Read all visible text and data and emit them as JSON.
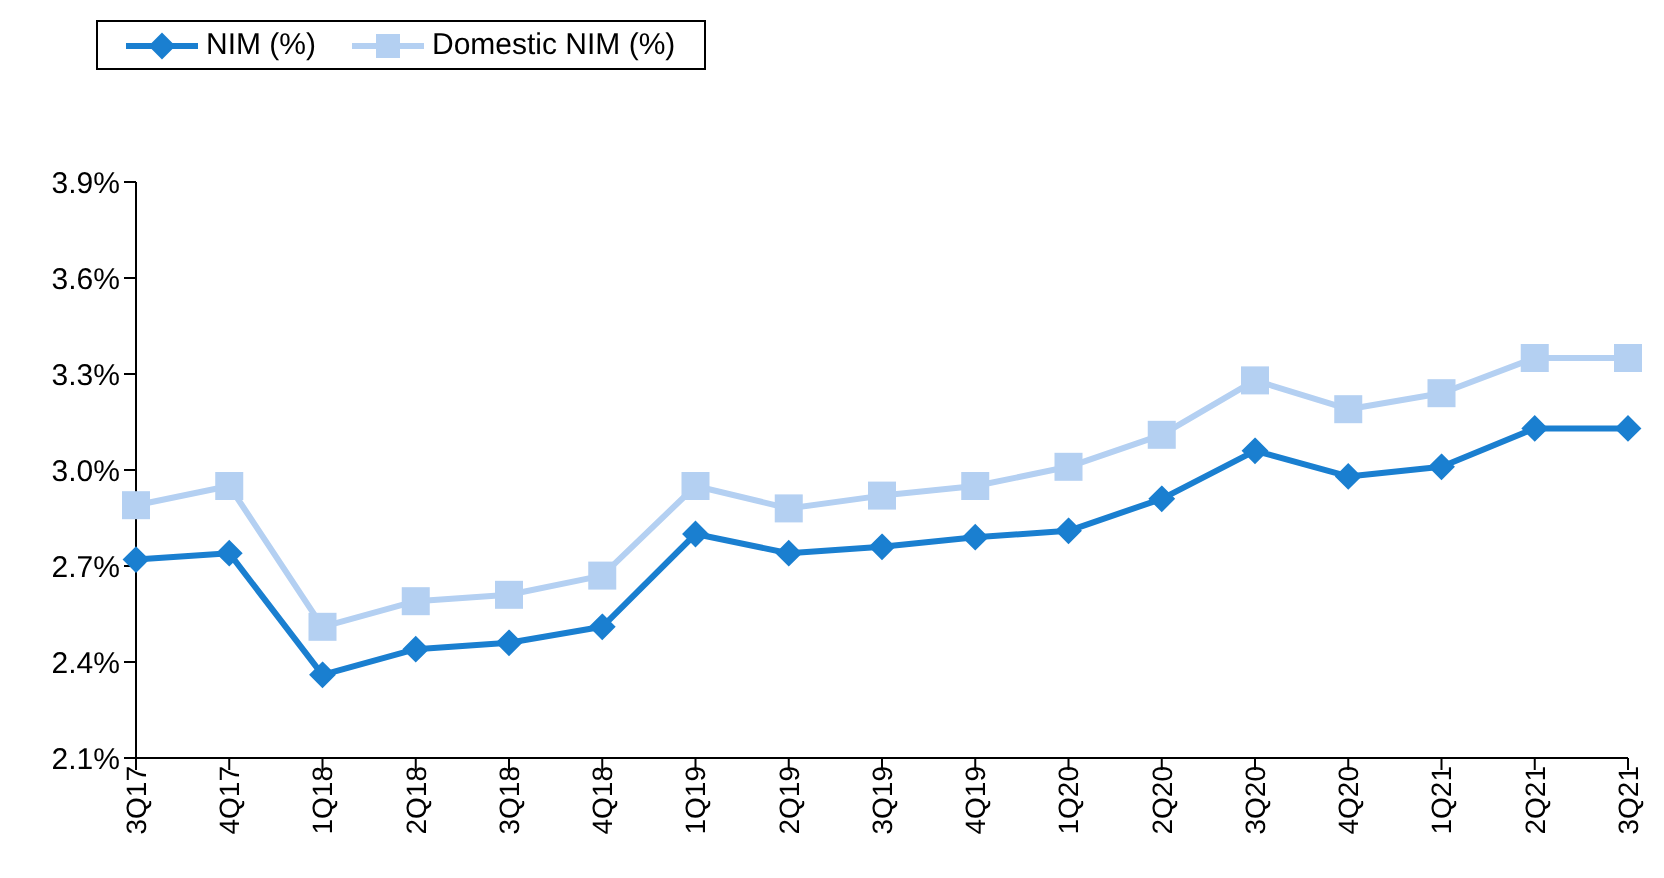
{
  "chart_data": {
    "type": "line",
    "categories": [
      "3Q17",
      "4Q17",
      "1Q18",
      "2Q18",
      "3Q18",
      "4Q18",
      "1Q19",
      "2Q19",
      "3Q19",
      "4Q19",
      "1Q20",
      "2Q20",
      "3Q20",
      "4Q20",
      "1Q21",
      "2Q21",
      "3Q21"
    ],
    "series": [
      {
        "name": "NIM (%)",
        "color": "#1a7fd0",
        "marker": "diamond",
        "values": [
          2.72,
          2.74,
          2.36,
          2.44,
          2.46,
          2.51,
          2.8,
          2.74,
          2.76,
          2.79,
          2.81,
          2.91,
          3.06,
          2.98,
          3.01,
          3.13,
          3.13
        ]
      },
      {
        "name": "Domestic NIM (%)",
        "color": "#b4d0f2",
        "marker": "square",
        "values": [
          2.89,
          2.95,
          2.51,
          2.59,
          2.61,
          2.67,
          2.95,
          2.88,
          2.92,
          2.95,
          3.01,
          3.11,
          3.28,
          3.19,
          3.24,
          3.35,
          3.35
        ]
      }
    ],
    "ylim": [
      2.1,
      3.9
    ],
    "yticks": [
      {
        "value": 2.1,
        "label": "2.1%"
      },
      {
        "value": 2.4,
        "label": "2.4%"
      },
      {
        "value": 2.7,
        "label": "2.7%"
      },
      {
        "value": 3.0,
        "label": "3.0%"
      },
      {
        "value": 3.3,
        "label": "3.3%"
      },
      {
        "value": 3.6,
        "label": "3.6%"
      },
      {
        "value": 3.9,
        "label": "3.9%"
      }
    ],
    "grid": false,
    "legend": "top",
    "line_style": "solid"
  }
}
